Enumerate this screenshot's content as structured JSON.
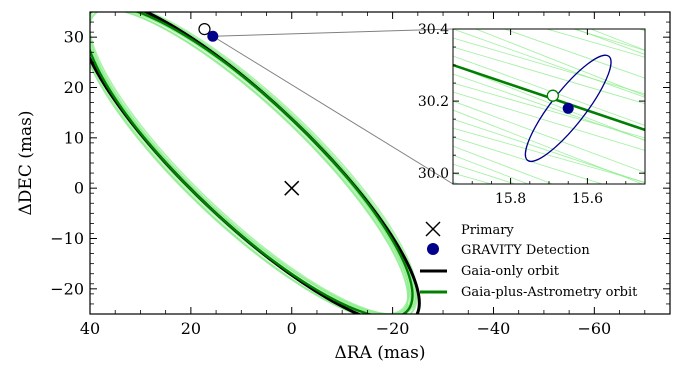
{
  "chart_data": [
    {
      "type": "scatter",
      "panel": "main",
      "xlabel": "ΔRA (mas)",
      "ylabel": "ΔDEC (mas)",
      "xlim": [
        40,
        -75
      ],
      "ylim": [
        -25,
        35
      ],
      "xticks": [
        40,
        20,
        0,
        -20,
        -40,
        -60
      ],
      "xtick_labels": [
        "40",
        "20",
        "0",
        "−20",
        "−40",
        "−60"
      ],
      "yticks": [
        -20,
        -10,
        0,
        10,
        20,
        30
      ],
      "ytick_labels": [
        "−20",
        "−10",
        "0",
        "10",
        "20",
        "30"
      ],
      "grid": false,
      "legend_position": "lower-right",
      "series": [
        {
          "name": "Primary",
          "marker": "x",
          "color": "#000000",
          "x": [
            0
          ],
          "y": [
            0
          ]
        },
        {
          "name": "GRAVITY Detection",
          "marker": "circle",
          "color": "#00008b",
          "x": [
            15.65
          ],
          "y": [
            30.18
          ]
        },
        {
          "name": "Gaia-only orbit",
          "style": "line",
          "color": "#000000",
          "orbit": {
            "top": [
              25,
              33
            ],
            "right_extent": [
              38,
              22
            ],
            "bottom": [
              9,
              -22
            ],
            "left_extent": [
              -20.5,
              -14
            ],
            "center": [
              8.5,
              5.3
            ]
          }
        },
        {
          "name": "Gaia-plus-Astrometry orbit",
          "style": "line",
          "color": "#008000",
          "sample_color": "#90ee90",
          "orbit": {
            "top": [
              24,
              32
            ],
            "right_extent": [
              37,
              21
            ],
            "bottom": [
              9,
              -21
            ],
            "left_extent": [
              -19.5,
              -13
            ],
            "center": [
              8.5,
              5.3
            ]
          }
        },
        {
          "name": "",
          "marker": "open-circle",
          "color": "#ffffff",
          "x": [
            17.3
          ],
          "y": [
            31.6
          ]
        }
      ]
    },
    {
      "type": "scatter",
      "panel": "inset",
      "xlim": [
        15.95,
        15.45
      ],
      "ylim": [
        29.97,
        30.4
      ],
      "xticks": [
        15.8,
        15.6
      ],
      "xtick_labels": [
        "15.8",
        "15.6"
      ],
      "yticks": [
        30.0,
        30.2,
        30.4
      ],
      "ytick_labels": [
        "30.0",
        "30.2",
        "30.4"
      ],
      "series": [
        {
          "name": "GRAVITY Detection",
          "marker": "circle",
          "color": "#00008b",
          "x": [
            15.65
          ],
          "y": [
            30.18
          ]
        },
        {
          "name": "GRAVITY error ellipse",
          "style": "ellipse",
          "color": "#00008b"
        },
        {
          "name": "Gaia-plus-Astrometry orbit",
          "style": "line",
          "color": "#008000",
          "x": [
            15.95,
            15.45
          ],
          "y": [
            30.3,
            30.12
          ]
        },
        {
          "name": "",
          "marker": "open-circle",
          "color": "#ffffff",
          "x": [
            15.69
          ],
          "y": [
            30.215
          ]
        }
      ]
    }
  ],
  "legend": {
    "items": [
      {
        "label": "Primary",
        "symbol": "x",
        "color": "#000000"
      },
      {
        "label": "GRAVITY Detection",
        "symbol": "dot",
        "color": "#00008b"
      },
      {
        "label": "Gaia-only orbit",
        "symbol": "line",
        "color": "#000000"
      },
      {
        "label": "Gaia-plus-Astrometry orbit",
        "symbol": "line",
        "color": "#008000"
      }
    ]
  },
  "colors": {
    "gaia_only": "#000000",
    "gaia_plus": "#008000",
    "samples": "#90ee90",
    "gravity": "#00008b",
    "connector": "#808080"
  }
}
